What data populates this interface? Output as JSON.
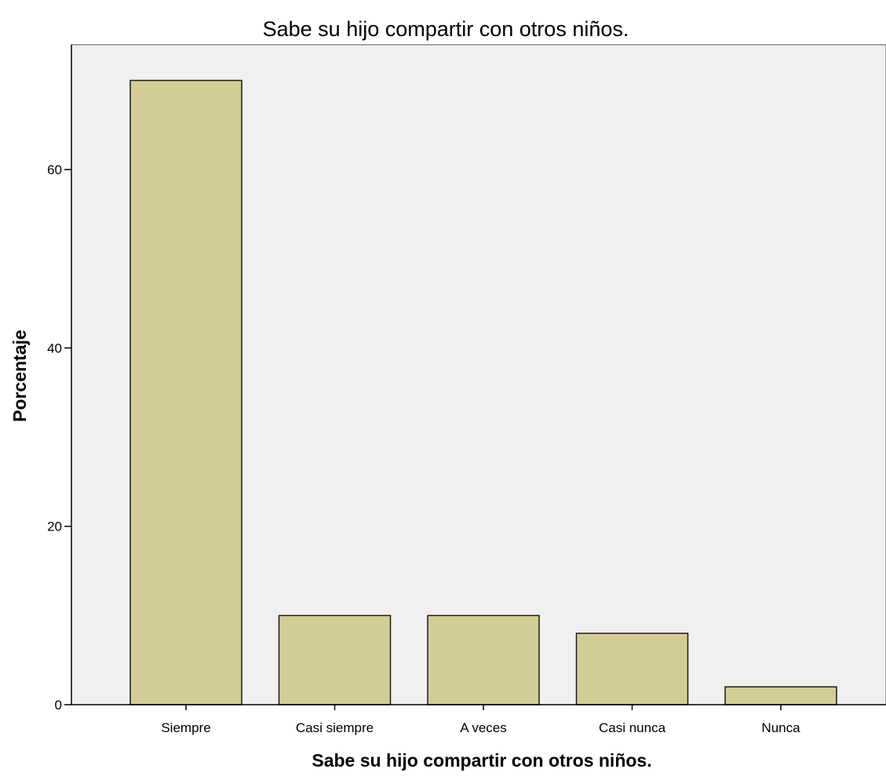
{
  "chart_data": {
    "type": "bar",
    "title": "Sabe su hijo compartir con otros niños.",
    "xlabel": "Sabe su hijo compartir con otros niños.",
    "ylabel": "Porcentaje",
    "categories": [
      "Siempre",
      "Casi siempre",
      "A veces",
      "Casi nunca",
      "Nunca"
    ],
    "values": [
      70,
      10,
      10,
      8,
      2
    ],
    "yticks": [
      0,
      20,
      40,
      60
    ],
    "ylim": [
      0,
      74
    ],
    "grid": false,
    "legend": "none",
    "colors": {
      "bar_fill": "#D3CD95",
      "bar_stroke": "#1a1a1a",
      "plot_background": "#F0F0F0",
      "axis": "#000000"
    }
  }
}
